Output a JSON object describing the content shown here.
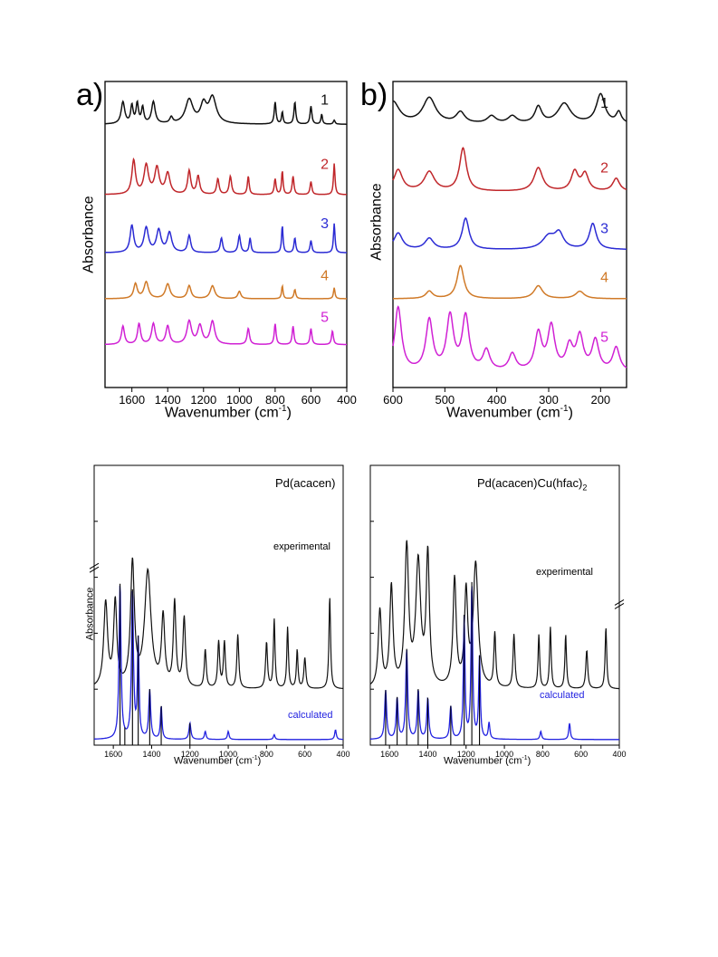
{
  "colors": {
    "s1": "#111111",
    "s2": "#c0262a",
    "s3": "#2b2bd4",
    "s4": "#d07a28",
    "s5": "#d021d4",
    "calc": "#2222e0",
    "axis": "#000000"
  },
  "chart_data": [
    {
      "id": "a",
      "type": "line",
      "panel_label": "a)",
      "xlabel": "Wavenumber (cm",
      "xlabel_sup": "-1",
      "xlabel_close": ")",
      "ylabel": "Absorbance",
      "xlim": [
        1750,
        400
      ],
      "xreversed": true,
      "xticks": [
        1600,
        1400,
        1200,
        1000,
        800,
        600,
        400
      ],
      "series": [
        {
          "name": "1",
          "color": "s1",
          "offset": 0.86,
          "scale": 0.13,
          "peaks": [
            [
              1650,
              0.55,
              12
            ],
            [
              1600,
              0.45,
              8
            ],
            [
              1570,
              0.5,
              8
            ],
            [
              1540,
              0.4,
              8
            ],
            [
              1480,
              0.55,
              12
            ],
            [
              1380,
              0.15,
              10
            ],
            [
              1280,
              0.6,
              25
            ],
            [
              1200,
              0.45,
              20
            ],
            [
              1150,
              0.65,
              25
            ],
            [
              800,
              0.55,
              6
            ],
            [
              760,
              0.3,
              5
            ],
            [
              690,
              0.55,
              6
            ],
            [
              600,
              0.45,
              6
            ],
            [
              540,
              0.25,
              5
            ],
            [
              470,
              0.1,
              6
            ]
          ]
        },
        {
          "name": "2",
          "color": "s2",
          "offset": 0.63,
          "scale": 0.17,
          "peaks": [
            [
              1590,
              0.65,
              12
            ],
            [
              1520,
              0.55,
              15
            ],
            [
              1460,
              0.5,
              15
            ],
            [
              1400,
              0.4,
              15
            ],
            [
              1280,
              0.45,
              10
            ],
            [
              1230,
              0.35,
              10
            ],
            [
              1120,
              0.3,
              8
            ],
            [
              1050,
              0.35,
              8
            ],
            [
              950,
              0.35,
              6
            ],
            [
              800,
              0.3,
              6
            ],
            [
              760,
              0.45,
              5
            ],
            [
              700,
              0.35,
              6
            ],
            [
              600,
              0.25,
              6
            ],
            [
              470,
              0.6,
              5
            ]
          ]
        },
        {
          "name": "3",
          "color": "s3",
          "offset": 0.44,
          "scale": 0.16,
          "peaks": [
            [
              1600,
              0.55,
              12
            ],
            [
              1520,
              0.5,
              15
            ],
            [
              1450,
              0.45,
              15
            ],
            [
              1390,
              0.4,
              15
            ],
            [
              1280,
              0.35,
              10
            ],
            [
              1100,
              0.3,
              8
            ],
            [
              1000,
              0.35,
              8
            ],
            [
              940,
              0.3,
              6
            ],
            [
              760,
              0.55,
              5
            ],
            [
              690,
              0.3,
              6
            ],
            [
              600,
              0.25,
              6
            ],
            [
              470,
              0.6,
              5
            ]
          ]
        },
        {
          "name": "4",
          "color": "s4",
          "offset": 0.29,
          "scale": 0.12,
          "peaks": [
            [
              1580,
              0.4,
              12
            ],
            [
              1520,
              0.45,
              15
            ],
            [
              1400,
              0.4,
              15
            ],
            [
              1280,
              0.35,
              12
            ],
            [
              1150,
              0.35,
              15
            ],
            [
              1000,
              0.2,
              10
            ],
            [
              760,
              0.35,
              5
            ],
            [
              690,
              0.25,
              6
            ],
            [
              470,
              0.3,
              5
            ]
          ]
        },
        {
          "name": "5",
          "color": "s5",
          "offset": 0.14,
          "scale": 0.15,
          "peaks": [
            [
              1650,
              0.4,
              10
            ],
            [
              1560,
              0.45,
              10
            ],
            [
              1480,
              0.45,
              12
            ],
            [
              1400,
              0.4,
              12
            ],
            [
              1280,
              0.5,
              15
            ],
            [
              1220,
              0.4,
              15
            ],
            [
              1150,
              0.5,
              15
            ],
            [
              950,
              0.35,
              8
            ],
            [
              800,
              0.45,
              6
            ],
            [
              700,
              0.4,
              6
            ],
            [
              600,
              0.35,
              6
            ],
            [
              480,
              0.3,
              6
            ]
          ]
        }
      ]
    },
    {
      "id": "b",
      "type": "line",
      "panel_label": "b)",
      "xlabel": "Wavenumber (cm",
      "xlabel_sup": "-1",
      "xlabel_close": ")",
      "ylabel": "Absorbance",
      "xlim": [
        600,
        150
      ],
      "xreversed": true,
      "xticks": [
        600,
        500,
        400,
        300,
        200
      ],
      "series": [
        {
          "name": "1",
          "color": "s1",
          "offset": 0.86,
          "scale": 0.12,
          "peaks": [
            [
              600,
              0.6,
              15
            ],
            [
              530,
              0.7,
              15
            ],
            [
              470,
              0.3,
              10
            ],
            [
              410,
              0.2,
              10
            ],
            [
              370,
              0.2,
              10
            ],
            [
              320,
              0.45,
              8
            ],
            [
              270,
              0.55,
              15
            ],
            [
              200,
              0.8,
              10
            ],
            [
              165,
              0.3,
              6
            ]
          ]
        },
        {
          "name": "2",
          "color": "s2",
          "offset": 0.64,
          "scale": 0.14,
          "peaks": [
            [
              590,
              0.5,
              10
            ],
            [
              530,
              0.45,
              12
            ],
            [
              465,
              1.0,
              8
            ],
            [
              320,
              0.55,
              10
            ],
            [
              250,
              0.45,
              8
            ],
            [
              230,
              0.4,
              8
            ],
            [
              170,
              0.3,
              8
            ]
          ]
        },
        {
          "name": "3",
          "color": "s3",
          "offset": 0.45,
          "scale": 0.12,
          "peaks": [
            [
              590,
              0.45,
              10
            ],
            [
              530,
              0.3,
              10
            ],
            [
              460,
              0.85,
              8
            ],
            [
              300,
              0.35,
              15
            ],
            [
              280,
              0.4,
              10
            ],
            [
              215,
              0.7,
              8
            ]
          ]
        },
        {
          "name": "4",
          "color": "s4",
          "offset": 0.29,
          "scale": 0.12,
          "peaks": [
            [
              530,
              0.2,
              8
            ],
            [
              470,
              0.9,
              8
            ],
            [
              320,
              0.35,
              10
            ],
            [
              240,
              0.2,
              10
            ]
          ]
        },
        {
          "name": "5",
          "color": "s5",
          "offset": 0.05,
          "scale": 0.22,
          "peaks": [
            [
              590,
              0.95,
              8
            ],
            [
              530,
              0.75,
              8
            ],
            [
              490,
              0.8,
              8
            ],
            [
              460,
              0.8,
              8
            ],
            [
              420,
              0.3,
              8
            ],
            [
              370,
              0.25,
              8
            ],
            [
              320,
              0.55,
              8
            ],
            [
              295,
              0.65,
              8
            ],
            [
              260,
              0.35,
              8
            ],
            [
              240,
              0.5,
              8
            ],
            [
              210,
              0.45,
              8
            ],
            [
              170,
              0.35,
              8
            ]
          ]
        }
      ],
      "label_positions_note": ""
    },
    {
      "id": "c",
      "type": "line",
      "title": "Pd(acacen)",
      "xlabel": "Wavenumber (cm",
      "xlabel_sup": "-1",
      "xlabel_close": ")",
      "ylabel": "Absorbance",
      "xlim": [
        1700,
        400
      ],
      "xreversed": true,
      "xticks": [
        1600,
        1400,
        1200,
        1000,
        800,
        600,
        400
      ],
      "series_label_exp": "experimental",
      "series_label_calc": "calculated",
      "exp_peaks": [
        [
          1640,
          0.55,
          12
        ],
        [
          1590,
          0.55,
          10
        ],
        [
          1500,
          0.8,
          12
        ],
        [
          1420,
          0.75,
          20
        ],
        [
          1340,
          0.45,
          10
        ],
        [
          1280,
          0.55,
          8
        ],
        [
          1230,
          0.45,
          8
        ],
        [
          1120,
          0.25,
          6
        ],
        [
          1050,
          0.3,
          6
        ],
        [
          1020,
          0.3,
          6
        ],
        [
          950,
          0.35,
          6
        ],
        [
          800,
          0.3,
          6
        ],
        [
          760,
          0.45,
          5
        ],
        [
          690,
          0.4,
          5
        ],
        [
          640,
          0.25,
          5
        ],
        [
          600,
          0.2,
          6
        ],
        [
          470,
          0.6,
          5
        ]
      ],
      "calc_peaks": [
        [
          1565,
          0.95,
          6
        ],
        [
          1500,
          0.9,
          6
        ],
        [
          1470,
          0.6,
          5
        ],
        [
          1410,
          0.3,
          6
        ],
        [
          1350,
          0.2,
          5
        ],
        [
          1200,
          0.1,
          6
        ],
        [
          1120,
          0.05,
          5
        ],
        [
          1000,
          0.05,
          5
        ],
        [
          760,
          0.03,
          5
        ],
        [
          440,
          0.06,
          5
        ]
      ],
      "sticks": [
        1565,
        1540,
        1500,
        1470,
        1410,
        1350,
        1200
      ]
    },
    {
      "id": "d",
      "type": "line",
      "title": "Pd(acacen)Cu(hfac)",
      "title_sub": "2",
      "xlabel": "Wavenumber (cm",
      "xlabel_sup": "-1",
      "xlabel_close": ")",
      "xlim": [
        1700,
        400
      ],
      "xreversed": true,
      "xticks": [
        1600,
        1400,
        1200,
        1000,
        800,
        600,
        400
      ],
      "series_label_exp": "experimental",
      "series_label_calc": "calculated",
      "exp_peaks": [
        [
          1650,
          0.5,
          10
        ],
        [
          1590,
          0.65,
          10
        ],
        [
          1510,
          0.9,
          12
        ],
        [
          1450,
          0.8,
          15
        ],
        [
          1400,
          0.85,
          10
        ],
        [
          1260,
          0.7,
          10
        ],
        [
          1200,
          0.6,
          10
        ],
        [
          1150,
          0.8,
          15
        ],
        [
          1050,
          0.35,
          6
        ],
        [
          950,
          0.35,
          6
        ],
        [
          820,
          0.35,
          5
        ],
        [
          760,
          0.4,
          5
        ],
        [
          680,
          0.35,
          5
        ],
        [
          570,
          0.25,
          6
        ],
        [
          470,
          0.4,
          5
        ]
      ],
      "calc_peaks": [
        [
          1620,
          0.3,
          6
        ],
        [
          1560,
          0.25,
          6
        ],
        [
          1510,
          0.55,
          6
        ],
        [
          1450,
          0.3,
          6
        ],
        [
          1400,
          0.25,
          6
        ],
        [
          1280,
          0.2,
          6
        ],
        [
          1210,
          0.75,
          5
        ],
        [
          1170,
          0.95,
          5
        ],
        [
          1130,
          0.5,
          5
        ],
        [
          1080,
          0.1,
          5
        ],
        [
          810,
          0.05,
          5
        ],
        [
          660,
          0.1,
          5
        ]
      ],
      "sticks": [
        1620,
        1560,
        1510,
        1450,
        1400,
        1280,
        1210,
        1170,
        1130
      ]
    }
  ]
}
